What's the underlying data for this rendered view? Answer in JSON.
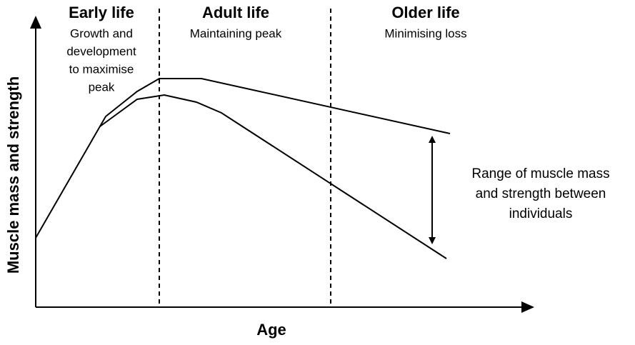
{
  "axes": {
    "y_label": "Muscle mass and strength",
    "x_label": "Age"
  },
  "phases": [
    {
      "title": "Early life",
      "subtitle_lines": [
        "Growth and",
        "development",
        "to maximise",
        "peak"
      ]
    },
    {
      "title": "Adult life",
      "subtitle_lines": [
        "Maintaining peak"
      ]
    },
    {
      "title": "Older life",
      "subtitle_lines": [
        "Minimising loss"
      ]
    }
  ],
  "annotation_lines": [
    "Range of muscle mass",
    "and strength between",
    "individuals"
  ]
}
